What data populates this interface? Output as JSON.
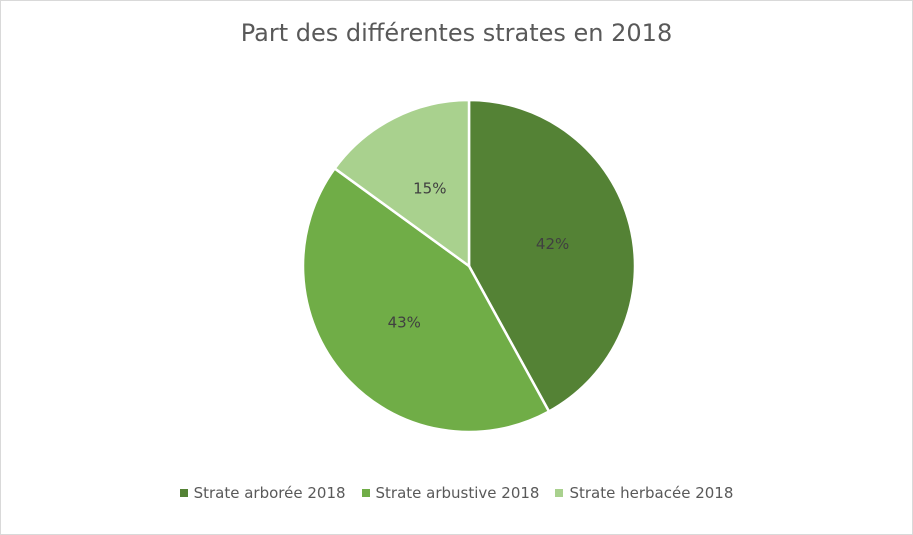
{
  "chart_data": {
    "type": "pie",
    "title": "Part des différentes strates en 2018",
    "categories": [
      "Strate arborée 2018",
      "Strate arbustive 2018",
      "Strate herbacée 2018"
    ],
    "values": [
      42,
      43,
      15
    ],
    "labels": [
      "42%",
      "43%",
      "15%"
    ],
    "colors": [
      "#548235",
      "#70AD47",
      "#A9D18E"
    ],
    "legend_position": "bottom"
  }
}
